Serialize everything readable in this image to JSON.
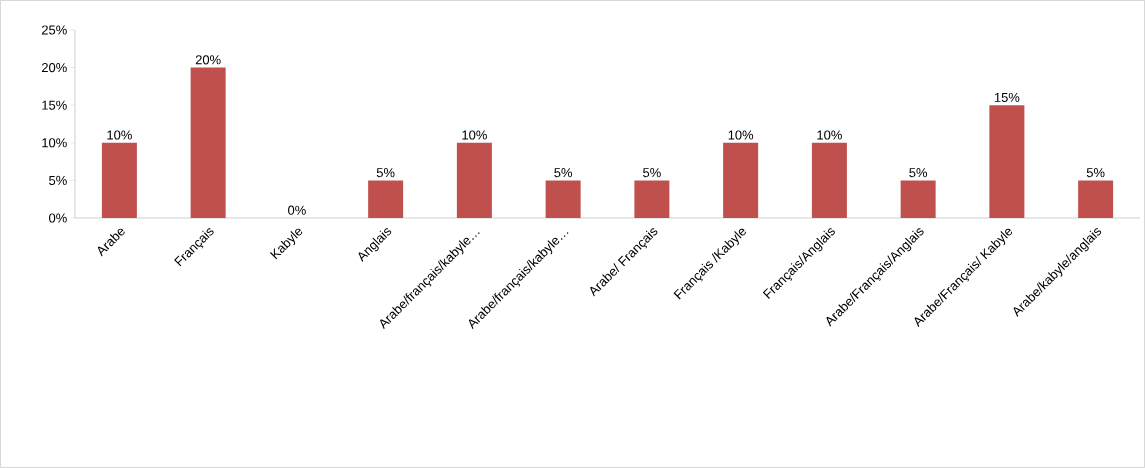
{
  "chart_data": {
    "type": "bar",
    "categories": [
      "Arabe",
      "Français",
      "Kabyle",
      "Anglais",
      "Arabe/français/kabyle…",
      "Arabe/français/kabyle…",
      "Arabe/ Français",
      "Français /Kabyle",
      "Français/Anglais",
      "Arabe/Français/Anglais",
      "Arabe/Français/ Kabyle",
      "Arabe/kabyle/anglais"
    ],
    "values": [
      10,
      20,
      0,
      5,
      10,
      5,
      5,
      10,
      10,
      5,
      15,
      5
    ],
    "value_labels": [
      "10%",
      "20%",
      "0%",
      "5%",
      "10%",
      "5%",
      "5%",
      "10%",
      "10%",
      "5%",
      "15%",
      "5%"
    ],
    "color": "#c0504d",
    "ylim": [
      0,
      25
    ],
    "yticks": [
      {
        "value": 0,
        "label": "0%"
      },
      {
        "value": 5,
        "label": "5%"
      },
      {
        "value": 10,
        "label": "10%"
      },
      {
        "value": 15,
        "label": "15%"
      },
      {
        "value": 20,
        "label": "20%"
      },
      {
        "value": 25,
        "label": "25%"
      }
    ],
    "grid": false
  }
}
